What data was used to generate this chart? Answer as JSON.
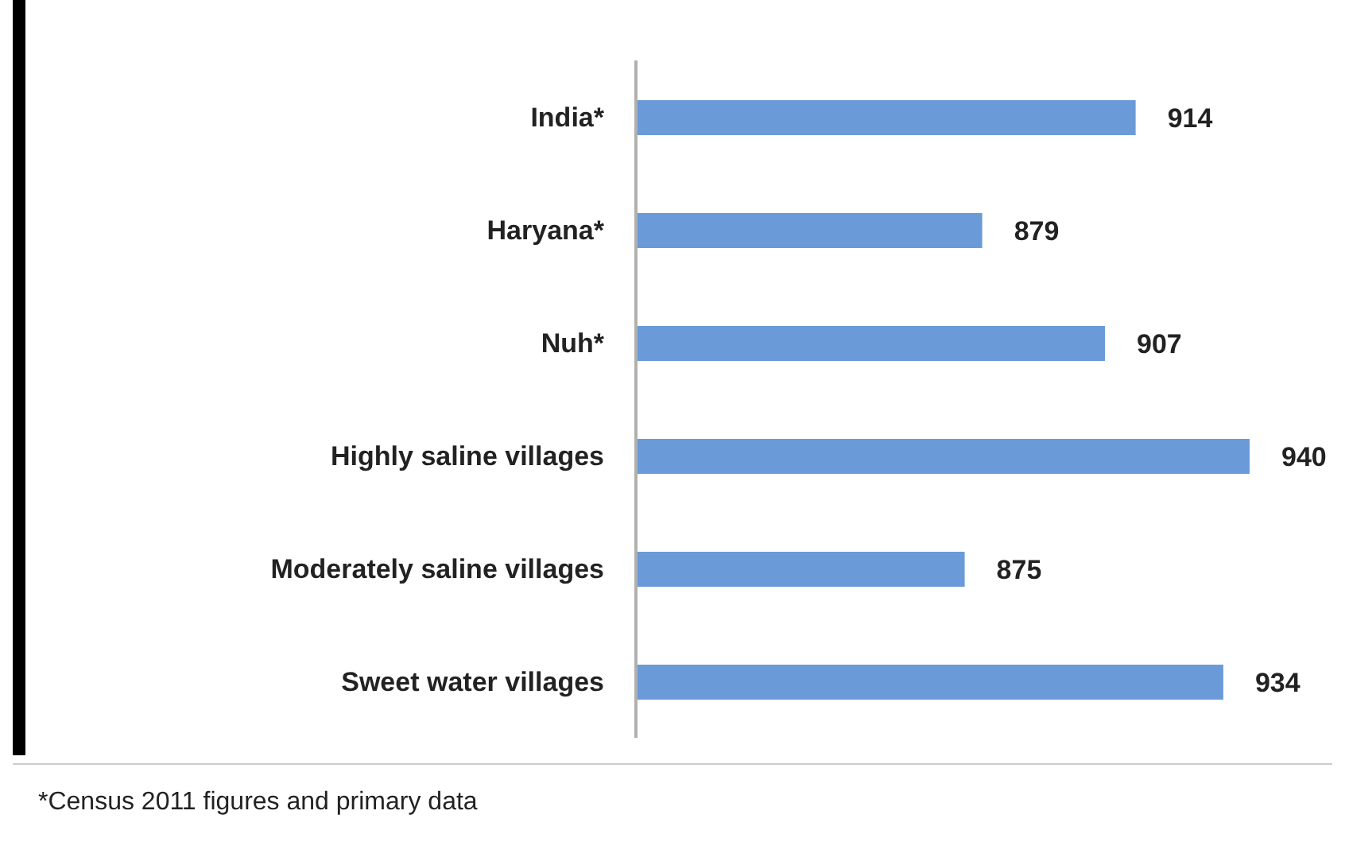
{
  "chart_data": {
    "type": "bar",
    "orientation": "horizontal",
    "categories": [
      "India*",
      "Haryana*",
      "Nuh*",
      "Highly saline villages",
      "Moderately saline villages",
      "Sweet water villages"
    ],
    "values": [
      914,
      879,
      907,
      940,
      875,
      934
    ],
    "color": "#6a9bd8",
    "xlim": [
      800,
      940
    ],
    "tick_labels": "y",
    "data_labels": true,
    "grid": false,
    "legend": false,
    "annotations": [
      "*Census 2011 figures and primary data"
    ]
  }
}
